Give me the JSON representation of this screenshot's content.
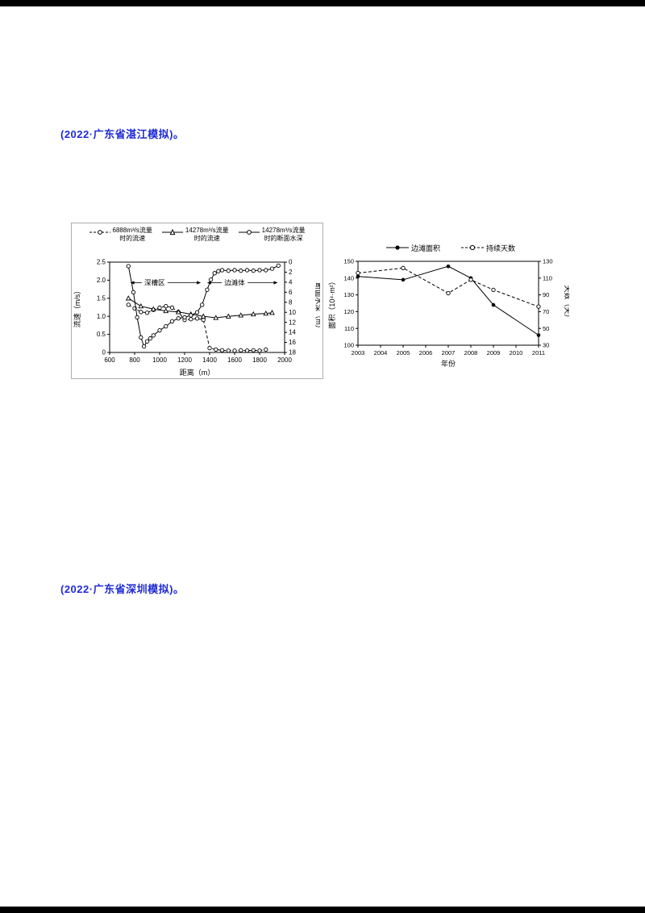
{
  "page": {
    "background_color": "#000000",
    "paper_color": "#ffffff",
    "accent_color": "#1f2bd6"
  },
  "texts": {
    "source1": "(2022·广东省湛江模拟)。",
    "source2": "(2022·广东省深圳模拟)。"
  },
  "chart_data": [
    {
      "type": "line",
      "title": "",
      "xlabel": "距离（m）",
      "ylabel_left": "流速（m/s）",
      "ylabel_right": "断面水深（m）",
      "x_range": [
        600,
        2000
      ],
      "x_tick_vals": [
        600,
        800,
        1000,
        1200,
        1400,
        1600,
        1800,
        2000
      ],
      "x_ticks": [
        "600",
        "800",
        "1000",
        "1200",
        "1400",
        "1600",
        "1800",
        "2000"
      ],
      "y_left_range": [
        0,
        2.5
      ],
      "y_left_tick_vals": [
        0,
        0.5,
        1.0,
        1.5,
        2.0,
        2.5
      ],
      "y_left_ticks": [
        "0",
        "0.5",
        "1.0",
        "1.5",
        "2.0",
        "2.5"
      ],
      "y_right_range": [
        0,
        18
      ],
      "y_right_inverted": true,
      "y_right_tick_vals": [
        0,
        2,
        4,
        6,
        8,
        10,
        12,
        14,
        16,
        18
      ],
      "y_right_ticks": [
        "0",
        "2",
        "4",
        "6",
        "8",
        "10",
        "12",
        "14",
        "16",
        "18"
      ],
      "grid": false,
      "annotations": [
        {
          "text": "深槽区",
          "x_text": 960,
          "x_start": 765,
          "x_end": 1330,
          "y": 1.93
        },
        {
          "text": "边滩体",
          "x_text": 1600,
          "x_start": 1380,
          "x_end": 1945,
          "y": 1.93
        }
      ],
      "series": [
        {
          "name": "6888m³/s流量时的流速",
          "legend1": "6888m³/s流量",
          "legend2": "时的流速",
          "axis": "left",
          "style": "dashed",
          "marker": "circle-open",
          "x": [
            750,
            800,
            850,
            900,
            950,
            1000,
            1050,
            1100,
            1150,
            1200,
            1250,
            1300,
            1350,
            1400,
            1450,
            1500,
            1550,
            1600,
            1650,
            1700,
            1750,
            1800,
            1850
          ],
          "y": [
            1.32,
            1.22,
            1.12,
            1.1,
            1.18,
            1.24,
            1.28,
            1.24,
            1.12,
            0.9,
            0.92,
            0.94,
            0.9,
            0.12,
            0.08,
            0.06,
            0.05,
            0.05,
            0.06,
            0.05,
            0.06,
            0.05,
            0.08
          ]
        },
        {
          "name": "14278m³/s流量时的流速",
          "legend1": "14278m³/s流量",
          "legend2": "时的流速",
          "axis": "left",
          "style": "solid",
          "marker": "triangle-open",
          "x": [
            750,
            850,
            950,
            1050,
            1150,
            1250,
            1350,
            1450,
            1550,
            1650,
            1750,
            1850,
            1900
          ],
          "y": [
            1.5,
            1.28,
            1.2,
            1.15,
            1.12,
            1.06,
            1.0,
            0.96,
            1.0,
            1.03,
            1.06,
            1.08,
            1.1
          ]
        },
        {
          "name": "14278m³/s流量时的断面水深",
          "legend1": "14278m³/s流量",
          "legend2": "时的断面水深",
          "axis": "right",
          "style": "solid",
          "marker": "circle-open",
          "x": [
            750,
            790,
            820,
            850,
            875,
            900,
            925,
            950,
            1000,
            1050,
            1100,
            1150,
            1200,
            1250,
            1300,
            1340,
            1380,
            1410,
            1440,
            1470,
            1500,
            1550,
            1600,
            1650,
            1700,
            1750,
            1800,
            1850,
            1900,
            1950
          ],
          "y": [
            0.8,
            6.0,
            11.0,
            15.0,
            16.8,
            15.8,
            15.2,
            14.6,
            13.6,
            12.8,
            11.8,
            11.2,
            11.0,
            10.6,
            10.0,
            8.5,
            5.5,
            3.5,
            2.2,
            1.8,
            1.6,
            1.7,
            1.6,
            1.7,
            1.6,
            1.7,
            1.6,
            1.6,
            1.3,
            0.7
          ]
        }
      ]
    },
    {
      "type": "line",
      "title": "",
      "xlabel": "年份",
      "ylabel_left": "面积（10⁴·m²）",
      "ylabel_right": "天数（天）",
      "x_range": [
        2003,
        2011
      ],
      "x_tick_vals": [
        2003,
        2004,
        2005,
        2006,
        2007,
        2008,
        2009,
        2010,
        2011
      ],
      "x_ticks": [
        "2003",
        "2004",
        "2005",
        "2006",
        "2007",
        "2008",
        "2009",
        "2010",
        "2011"
      ],
      "y_left_range": [
        100,
        150
      ],
      "y_left_tick_vals": [
        100,
        110,
        120,
        130,
        140,
        150
      ],
      "y_left_ticks": [
        "100",
        "110",
        "120",
        "130",
        "140",
        "150"
      ],
      "y_right_range": [
        30,
        130
      ],
      "y_right_inverted": false,
      "y_right_tick_vals": [
        30,
        50,
        70,
        90,
        110,
        130
      ],
      "y_right_ticks": [
        "30",
        "50",
        "70",
        "90",
        "110",
        "130"
      ],
      "grid": false,
      "annotations": [],
      "series": [
        {
          "name": "边滩面积",
          "legend1": "边滩面积",
          "legend2": "",
          "axis": "left",
          "style": "solid",
          "marker": "circle-filled",
          "x": [
            2003,
            2005,
            2007,
            2008,
            2009,
            2011
          ],
          "y": [
            141,
            139,
            147,
            140,
            124,
            106
          ]
        },
        {
          "name": "持续天数",
          "legend1": "持续天数",
          "legend2": "",
          "axis": "right",
          "style": "dashed",
          "marker": "circle-open",
          "x": [
            2003,
            2005,
            2007,
            2008,
            2009,
            2011
          ],
          "y": [
            116,
            122,
            92,
            108,
            96,
            76
          ]
        }
      ]
    }
  ]
}
